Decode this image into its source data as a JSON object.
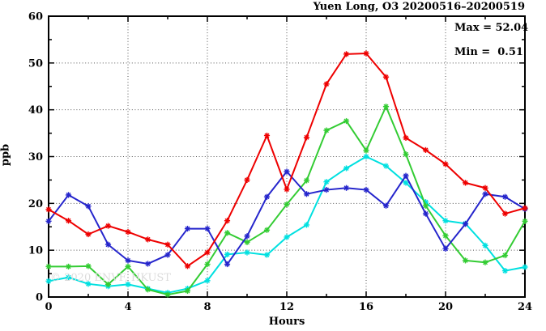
{
  "title": "Yuen Long, O3 20200516–20200519",
  "stats": {
    "max_line": "Max = 52.04",
    "min_line": "Min =  0.51"
  },
  "watermark": "© 2020 ENVF, HKUST",
  "chart_data": {
    "type": "line",
    "title": "Yuen Long, O3 20200516–20200519",
    "xlabel": "Hours",
    "ylabel": "ppb",
    "xlim": [
      0,
      24
    ],
    "ylim": [
      0,
      60
    ],
    "x_major_ticks": [
      0,
      4,
      8,
      12,
      16,
      20,
      24
    ],
    "x_minor_ticks": [
      2,
      6,
      10,
      14,
      18,
      22
    ],
    "y_major_ticks": [
      0,
      10,
      20,
      30,
      40,
      50,
      60
    ],
    "y_minor_ticks": [
      5,
      15,
      25,
      35,
      45,
      55
    ],
    "grid_x": [
      4,
      8,
      12,
      16,
      20
    ],
    "grid_y": [
      10,
      20,
      30,
      40,
      50
    ],
    "grid_style": "dotted",
    "legend": "none",
    "marker": "asterisk",
    "stat_max": 52.04,
    "stat_min": 0.51,
    "x": [
      0,
      1,
      2,
      3,
      4,
      5,
      6,
      7,
      8,
      9,
      10,
      11,
      12,
      13,
      14,
      15,
      16,
      17,
      18,
      19,
      20,
      21,
      22,
      23,
      24
    ],
    "series": [
      {
        "name": "cyan-line",
        "color": "#00e0e0",
        "values": [
          3.4,
          4.2,
          2.8,
          2.3,
          2.7,
          1.8,
          0.9,
          1.8,
          3.5,
          9.1,
          9.5,
          9.0,
          12.8,
          15.4,
          24.6,
          27.5,
          30.0,
          28.0,
          24.4,
          20.3,
          16.3,
          15.7,
          11.0,
          5.6,
          6.4
        ]
      },
      {
        "name": "green-line",
        "color": "#33cc33",
        "values": [
          6.5,
          6.5,
          6.6,
          2.7,
          6.5,
          1.6,
          0.51,
          1.3,
          7.0,
          13.7,
          11.7,
          14.3,
          19.8,
          24.9,
          35.6,
          37.6,
          31.3,
          40.7,
          30.5,
          19.5,
          13.1,
          7.8,
          7.4,
          8.9,
          16.2
        ]
      },
      {
        "name": "blue-line",
        "color": "#2525cc",
        "values": [
          16.2,
          21.8,
          19.4,
          11.2,
          7.8,
          7.1,
          9.0,
          14.6,
          14.6,
          7.0,
          13.0,
          21.4,
          26.8,
          22.0,
          22.9,
          23.3,
          22.9,
          19.5,
          25.9,
          17.8,
          10.3,
          15.6,
          22.0,
          21.4,
          18.8
        ]
      },
      {
        "name": "red-line",
        "color": "#ee0000",
        "values": [
          18.7,
          16.3,
          13.4,
          15.2,
          13.9,
          12.3,
          11.2,
          6.6,
          9.5,
          16.3,
          25.0,
          34.5,
          23.0,
          34.1,
          45.5,
          51.9,
          52.04,
          47.0,
          34.0,
          31.4,
          28.4,
          24.4,
          23.3,
          17.8,
          19.0
        ]
      }
    ]
  }
}
